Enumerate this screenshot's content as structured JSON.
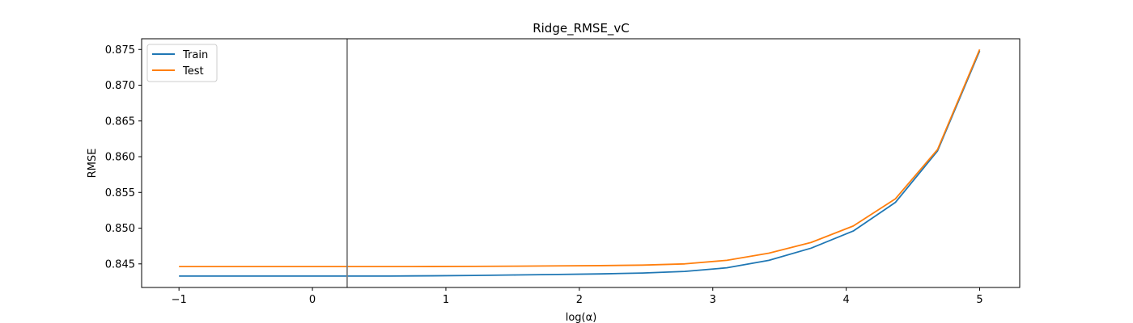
{
  "chart_data": {
    "type": "line",
    "title": "Ridge_RMSE_vC",
    "xlabel": "log(α)",
    "ylabel": "RMSE",
    "xlim": [
      -1.28,
      5.3
    ],
    "ylim": [
      0.8417,
      0.8765
    ],
    "x_ticks": [
      -1,
      0,
      1,
      2,
      3,
      4,
      5
    ],
    "y_ticks": [
      0.845,
      0.85,
      0.855,
      0.86,
      0.865,
      0.87,
      0.875
    ],
    "y_tick_labels": [
      "0.845",
      "0.850",
      "0.855",
      "0.860",
      "0.865",
      "0.870",
      "0.875"
    ],
    "x": [
      -1.0,
      -0.6842,
      -0.3684,
      -0.0526,
      0.2632,
      0.5789,
      0.8947,
      1.2105,
      1.5263,
      1.8421,
      2.1579,
      2.4737,
      2.7895,
      3.1053,
      3.4211,
      3.7368,
      4.0526,
      4.3684,
      4.6842,
      5.0
    ],
    "series": [
      {
        "name": "Train",
        "color": "#1f77b4",
        "values": [
          0.8433,
          0.8433,
          0.8433,
          0.8433,
          0.8433,
          0.8433,
          0.84333,
          0.84338,
          0.84345,
          0.84352,
          0.8436,
          0.84372,
          0.84395,
          0.84445,
          0.8455,
          0.8472,
          0.8496,
          0.8536,
          0.8608,
          0.8748
        ]
      },
      {
        "name": "Test",
        "color": "#ff7f0e",
        "values": [
          0.84462,
          0.84462,
          0.84462,
          0.84462,
          0.84462,
          0.84462,
          0.84463,
          0.84465,
          0.84468,
          0.84472,
          0.84476,
          0.84483,
          0.845,
          0.8455,
          0.8465,
          0.848,
          0.8503,
          0.8541,
          0.861,
          0.875
        ]
      }
    ],
    "vline": {
      "x": 0.26,
      "color": "#808080"
    },
    "legend": "top-left",
    "grid": false
  }
}
